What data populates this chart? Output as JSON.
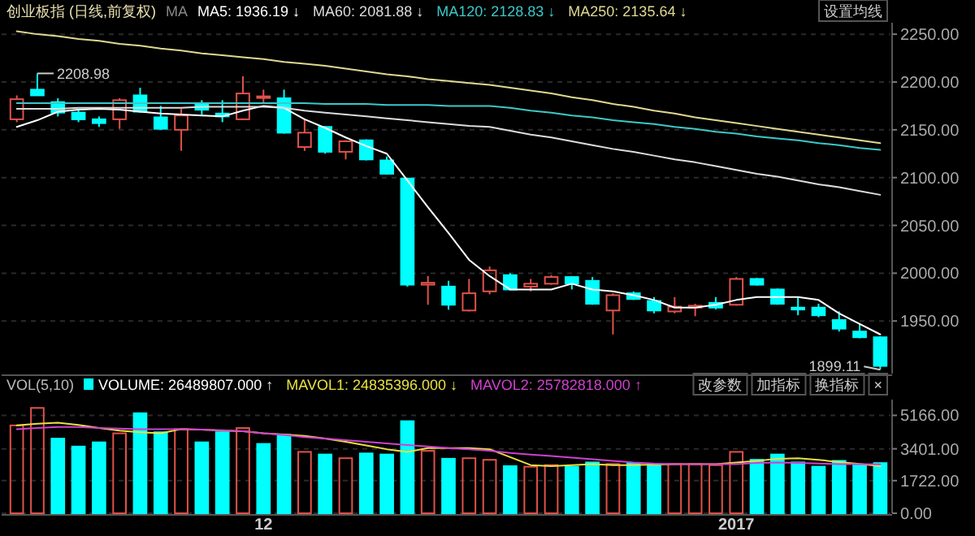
{
  "chart_data": [
    {
      "type": "candlestick",
      "title": "创业板指 (日线,前复权)",
      "legend": "top",
      "grid": "y",
      "tick_labels": "y",
      "categories": [
        null,
        null,
        null,
        null,
        null,
        null,
        null,
        null,
        null,
        null,
        null,
        null,
        "12",
        null,
        null,
        null,
        null,
        null,
        null,
        null,
        null,
        null,
        null,
        null,
        null,
        null,
        null,
        null,
        null,
        null,
        null,
        null,
        null,
        null,
        null,
        "2017",
        null,
        null,
        null,
        null,
        null,
        null,
        null
      ],
      "ohlc": [
        [
          2161,
          2186,
          2158,
          2182
        ],
        [
          2192,
          2208.98,
          2186,
          2186
        ],
        [
          2179,
          2183,
          2164,
          2168
        ],
        [
          2168,
          2172,
          2158,
          2161
        ],
        [
          2161,
          2164,
          2153,
          2157
        ],
        [
          2161,
          2183,
          2151,
          2181
        ],
        [
          2186,
          2194,
          2168,
          2169
        ],
        [
          2163,
          2175,
          2150,
          2151
        ],
        [
          2150,
          2172,
          2128,
          2165
        ],
        [
          2177,
          2181,
          2166,
          2171
        ],
        [
          2167,
          2181,
          2158,
          2164
        ],
        [
          2161,
          2206,
          2160,
          2188
        ],
        [
          2184,
          2192,
          2178,
          2185
        ],
        [
          2183,
          2192,
          2146,
          2147
        ],
        [
          2132,
          2161,
          2128,
          2147
        ],
        [
          2153,
          2154,
          2125,
          2127
        ],
        [
          2127,
          2139,
          2119,
          2138
        ],
        [
          2139,
          2140,
          2118,
          2119
        ],
        [
          2118,
          2122,
          2103,
          2104
        ],
        [
          2099,
          2100,
          1986,
          1988
        ],
        [
          1988,
          1997,
          1967,
          1990
        ],
        [
          1986,
          1992,
          1962,
          1967
        ],
        [
          1961,
          1994,
          1960,
          1979
        ],
        [
          1981,
          2007,
          1978,
          2003
        ],
        [
          1998,
          2000,
          1982,
          1983
        ],
        [
          1986,
          1994,
          1981,
          1989
        ],
        [
          1989,
          1998,
          1988,
          1996
        ],
        [
          1996,
          1997,
          1983,
          1989
        ],
        [
          1992,
          1996,
          1967,
          1968
        ],
        [
          1961,
          1979,
          1936,
          1977
        ],
        [
          1979,
          1981,
          1972,
          1973
        ],
        [
          1971,
          1975,
          1958,
          1961
        ],
        [
          1960,
          1975,
          1958,
          1965
        ],
        [
          1964,
          1968,
          1955,
          1966
        ],
        [
          1969,
          1975,
          1962,
          1964
        ],
        [
          1967,
          1996,
          1966,
          1994
        ],
        [
          1994,
          1995,
          1987,
          1988
        ],
        [
          1983,
          1984,
          1967,
          1968
        ],
        [
          1964,
          1975,
          1956,
          1962
        ],
        [
          1964,
          1968,
          1954,
          1956
        ],
        [
          1951,
          1960,
          1939,
          1942
        ],
        [
          1939,
          1947,
          1932,
          1933
        ],
        [
          1933,
          1934,
          1899.11,
          1903
        ]
      ],
      "colors": [
        "#e0524a",
        "#00ffff",
        "#00ffff",
        "#00ffff",
        "#00ffff",
        "#e0524a",
        "#00ffff",
        "#00ffff",
        "#e0524a",
        "#00ffff",
        "#00ffff",
        "#e0524a",
        "#e0524a",
        "#00ffff",
        "#e0524a",
        "#00ffff",
        "#e0524a",
        "#00ffff",
        "#00ffff",
        "#00ffff",
        "#e0524a",
        "#00ffff",
        "#e0524a",
        "#e0524a",
        "#00ffff",
        "#e0524a",
        "#e0524a",
        "#00ffff",
        "#00ffff",
        "#e0524a",
        "#00ffff",
        "#00ffff",
        "#e0524a",
        "#e0524a",
        "#00ffff",
        "#e0524a",
        "#00ffff",
        "#00ffff",
        "#00ffff",
        "#00ffff",
        "#00ffff",
        "#00ffff",
        "#00ffff"
      ],
      "series": [
        {
          "type": "line",
          "name": "MA5: 1936.19 ↓",
          "color": "#ffffff",
          "values": [
            2153,
            2160,
            2169,
            2171,
            2172,
            2171,
            2169,
            2167,
            2166,
            2165,
            2164,
            2170,
            2175,
            2173,
            2161,
            2152,
            2142,
            2133,
            2125,
            2097,
            2069,
            2042,
            2014,
            1997,
            1983,
            1983,
            1983,
            1989,
            1983,
            1981,
            1977,
            1972,
            1964,
            1964,
            1967,
            1972,
            1975,
            1975,
            1975,
            1972,
            1958,
            1947,
            1936
          ]
        },
        {
          "type": "line",
          "name": "MA60: 2081.88 ↓",
          "color": "#dcdcdc",
          "values": [
            2172,
            2172,
            2172,
            2173,
            2173,
            2173,
            2173,
            2173,
            2173,
            2174,
            2174,
            2174,
            2174,
            2173,
            2170,
            2168,
            2166,
            2164,
            2162,
            2160,
            2158,
            2156,
            2154,
            2153,
            2149,
            2145,
            2142,
            2138,
            2134,
            2130,
            2127,
            2123,
            2119,
            2116,
            2112,
            2108,
            2104,
            2101,
            2097,
            2093,
            2090,
            2086,
            2082
          ]
        },
        {
          "type": "line",
          "name": "MA120: 2128.83 ↓",
          "color": "#3cc8c8",
          "values": [
            2178,
            2178,
            2178,
            2178,
            2178,
            2178,
            2178,
            2178,
            2178,
            2178,
            2178,
            2178,
            2178,
            2178,
            2178,
            2177,
            2177,
            2177,
            2176,
            2176,
            2176,
            2175,
            2175,
            2175,
            2173,
            2170,
            2168,
            2165,
            2163,
            2160,
            2158,
            2156,
            2153,
            2151,
            2148,
            2146,
            2143,
            2141,
            2139,
            2136,
            2134,
            2131,
            2129
          ]
        },
        {
          "type": "line",
          "name": "MA250: 2135.64 ↓",
          "color": "#e0d890",
          "values": [
            2253,
            2250,
            2248,
            2245,
            2243,
            2240,
            2238,
            2235,
            2233,
            2230,
            2228,
            2226,
            2224,
            2221,
            2219,
            2217,
            2214,
            2211,
            2208,
            2206,
            2203,
            2201,
            2199,
            2197,
            2194,
            2191,
            2188,
            2184,
            2181,
            2177,
            2174,
            2170,
            2167,
            2163,
            2160,
            2157,
            2154,
            2151,
            2148,
            2145,
            2142,
            2139,
            2136
          ]
        }
      ],
      "ylim": [
        1895,
        2262
      ],
      "yticks": [
        {
          "value": 1950,
          "label": "1950.00"
        },
        {
          "value": 2000,
          "label": "2000.00"
        },
        {
          "value": 2050,
          "label": "2050.00"
        },
        {
          "value": 2100,
          "label": "2100.00"
        },
        {
          "value": 2150,
          "label": "2150.00"
        },
        {
          "value": 2200,
          "label": "2200.00"
        },
        {
          "value": 2250,
          "label": "2250.00"
        }
      ],
      "annotations": [
        "2208.98",
        "1899.11",
        "MA",
        "设置均线"
      ]
    },
    {
      "type": "bar",
      "title": "VOL(5,10)",
      "legend": "top",
      "grid": "y",
      "categories": [
        null,
        null,
        null,
        null,
        null,
        null,
        null,
        null,
        null,
        null,
        null,
        null,
        "12",
        null,
        null,
        null,
        null,
        null,
        null,
        null,
        null,
        null,
        null,
        null,
        null,
        null,
        null,
        null,
        null,
        null,
        null,
        null,
        null,
        null,
        null,
        "2017",
        null,
        null,
        null,
        null,
        null,
        null,
        null
      ],
      "series": [
        {
          "type": "bar",
          "name": "VOLUME: 26489807.000 ↑",
          "colors": [
            "#e0524a",
            "#e0524a",
            "#00ffff",
            "#00ffff",
            "#00ffff",
            "#e0524a",
            "#00ffff",
            "#00ffff",
            "#e0524a",
            "#00ffff",
            "#00ffff",
            "#e0524a",
            "#00ffff",
            "#00ffff",
            "#e0524a",
            "#00ffff",
            "#e0524a",
            "#00ffff",
            "#00ffff",
            "#00ffff",
            "#e0524a",
            "#00ffff",
            "#e0524a",
            "#e0524a",
            "#00ffff",
            "#e0524a",
            "#e0524a",
            "#00ffff",
            "#00ffff",
            "#e0524a",
            "#00ffff",
            "#00ffff",
            "#e0524a",
            "#e0524a",
            "#e0524a",
            "#e0524a",
            "#00ffff",
            "#00ffff",
            "#00ffff",
            "#00ffff",
            "#00ffff",
            "#00ffff",
            "#00ffff"
          ],
          "values": [
            4637,
            5559,
            3939,
            3520,
            3743,
            4218,
            5279,
            4274,
            4441,
            3743,
            4274,
            4497,
            3659,
            4134,
            3240,
            3101,
            2905,
            3156,
            3101,
            4860,
            3296,
            2877,
            2905,
            2821,
            2486,
            2458,
            2542,
            2458,
            2682,
            2598,
            2626,
            2570,
            2598,
            2598,
            2542,
            3240,
            2821,
            3101,
            2682,
            2458,
            2765,
            2542,
            2649
          ]
        },
        {
          "type": "line",
          "name": "MAVOL1: 24835396.000 ↓",
          "color": "#e8e040",
          "values": [
            4637,
            4721,
            4777,
            4665,
            4497,
            4358,
            4274,
            4218,
            4441,
            4413,
            4358,
            4330,
            4218,
            4162,
            4078,
            3939,
            3771,
            3575,
            3380,
            3240,
            3436,
            3436,
            3436,
            3380,
            2961,
            2542,
            2486,
            2542,
            2598,
            2542,
            2542,
            2570,
            2598,
            2598,
            2598,
            2682,
            2765,
            2877,
            2905,
            2821,
            2700,
            2600,
            2484
          ]
        },
        {
          "type": "line",
          "name": "MAVOL2: 25782818.000 ↑",
          "color": "#d040d0",
          "values": [
            4441,
            4497,
            4553,
            4553,
            4497,
            4469,
            4441,
            4441,
            4441,
            4413,
            4386,
            4330,
            4218,
            4134,
            4022,
            3939,
            3855,
            3771,
            3687,
            3603,
            3520,
            3436,
            3380,
            3296,
            3184,
            3101,
            3017,
            2933,
            2849,
            2765,
            2682,
            2626,
            2598,
            2598,
            2598,
            2598,
            2654,
            2682,
            2654,
            2626,
            2598,
            2590,
            2578
          ]
        }
      ],
      "ylim": [
        0,
        6000
      ],
      "yticks": [
        {
          "value": 0,
          "label": "0.00"
        },
        {
          "value": 1722,
          "label": "1722.00"
        },
        {
          "value": 3401,
          "label": "3401.00"
        },
        {
          "value": 5166,
          "label": "5166.00"
        }
      ],
      "annotations": [
        "改参数",
        "加指标",
        "换指标",
        "×"
      ]
    }
  ]
}
